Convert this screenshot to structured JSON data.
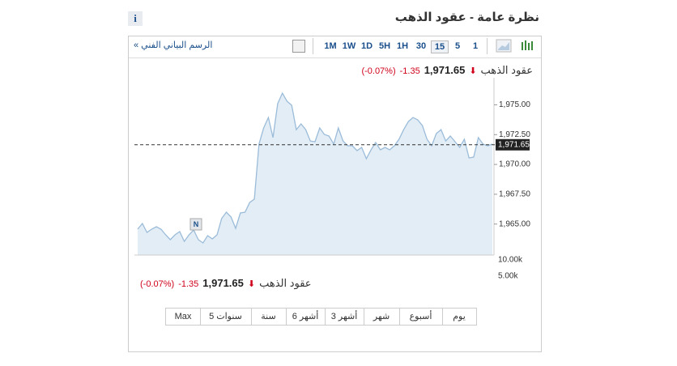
{
  "header": {
    "title": "نظرة عامة - عقود الذهب",
    "info_button": "i"
  },
  "toolbar": {
    "technical_link": "الرسم البياني الفني »",
    "intervals": [
      "1M",
      "1W",
      "1D",
      "5H",
      "1H",
      "30",
      "15",
      "5",
      "1"
    ],
    "selected_interval": "15"
  },
  "quote": {
    "name": "عقود الذهب",
    "price": "1,971.65",
    "change": "-1.35",
    "change_percent": "(-0.07%)"
  },
  "marker_label": "N",
  "volume_labels": [
    "10.00k",
    "5.00k"
  ],
  "ranges": [
    "يوم",
    "أسبوع",
    "شهر",
    "3 أشهر",
    "6 أشهر",
    "سنة",
    "5 سنوات",
    "Max"
  ],
  "chart_data": {
    "type": "area",
    "color": "#9bbcd9",
    "values": [
      1964.57,
      1965.05,
      1964.3,
      1964.57,
      1964.78,
      1964.57,
      1964.1,
      1963.69,
      1964.1,
      1964.37,
      1963.55,
      1964.1,
      1964.5,
      1963.69,
      1963.42,
      1964.03,
      1963.76,
      1964.1,
      1965.46,
      1966.0,
      1965.59,
      1964.64,
      1965.93,
      1966.0,
      1966.81,
      1967.09,
      1971.7,
      1973.06,
      1973.94,
      1972.25,
      1975.1,
      1975.98,
      1975.3,
      1974.96,
      1972.92,
      1973.4,
      1972.92,
      1971.97,
      1971.91,
      1973.06,
      1972.52,
      1972.38,
      1971.7,
      1973.06,
      1971.97,
      1971.57,
      1971.57,
      1971.16,
      1971.43,
      1970.48,
      1971.23,
      1971.84,
      1971.23,
      1971.43,
      1971.23,
      1971.57,
      1972.11,
      1972.92,
      1973.6,
      1973.94,
      1973.74,
      1973.26,
      1972.11,
      1971.57,
      1972.59,
      1972.92,
      1971.97,
      1972.38,
      1971.91,
      1971.43,
      1972.11,
      1970.55,
      1970.62,
      1972.25,
      1971.7,
      1971.57,
      1971.7
    ],
    "ylim": [
      1962.4,
      1977
    ],
    "yticks": [
      {
        "value": 1965,
        "label": "1,965.00"
      },
      {
        "value": 1967.5,
        "label": "1,967.50"
      },
      {
        "value": 1970,
        "label": "1,970.00"
      },
      {
        "value": 1972.5,
        "label": "1,972.50"
      },
      {
        "value": 1975,
        "label": "1,975.00"
      }
    ],
    "last": {
      "value": 1971.65,
      "label": "1,971.65"
    }
  }
}
